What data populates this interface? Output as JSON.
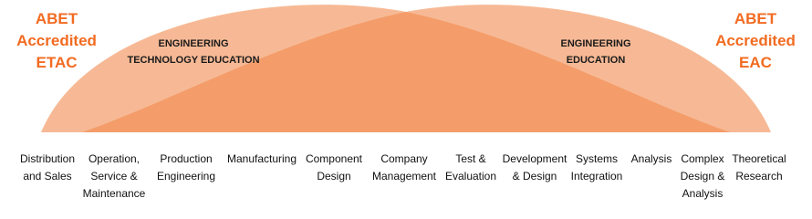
{
  "left_label": [
    "ABET",
    "Accredited",
    "ETAC"
  ],
  "right_label": [
    "ABET",
    "Accredited",
    "EAC"
  ],
  "regions": [
    {
      "label": [
        "ENGINEERING",
        "TECHNOLOGY EDUCATION"
      ]
    },
    {
      "label": [
        "ENGINEERING",
        "EDUCATION"
      ]
    }
  ],
  "spectrum": [
    [
      "Distribution",
      "and Sales"
    ],
    [
      "Operation,",
      "Service &",
      "Maintenance"
    ],
    [
      "Production",
      "Engineering"
    ],
    [
      "Manufacturing"
    ],
    [
      "Component",
      "Design"
    ],
    [
      "Company",
      "Management"
    ],
    [
      "Test &",
      "Evaluation"
    ],
    [
      "Development",
      "& Design"
    ],
    [
      "Systems",
      "Integration"
    ],
    [
      "Analysis"
    ],
    [
      "Complex",
      "Design &",
      "Analysis"
    ],
    [
      "Theoretical",
      "Research"
    ]
  ]
}
